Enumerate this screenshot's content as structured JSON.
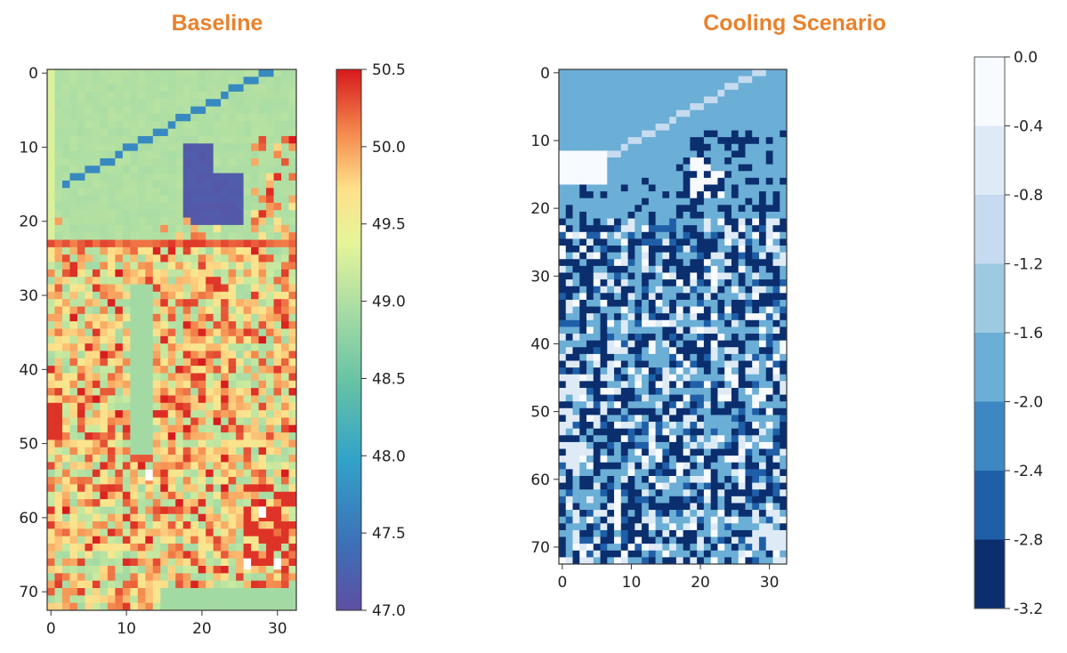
{
  "titles": {
    "left": "Baseline",
    "right": "Cooling Scenario"
  },
  "chart_data": [
    {
      "type": "heatmap",
      "title": "Baseline",
      "rows": 73,
      "cols": 33,
      "x_ticks": [
        0,
        10,
        20,
        30
      ],
      "y_ticks": [
        0,
        10,
        20,
        30,
        40,
        50,
        60,
        70
      ],
      "colorbar": {
        "colormap": "spectral",
        "vmin": 47.0,
        "vmax": 50.5,
        "ticks": [
          "47.0",
          "47.5",
          "48.0",
          "48.5",
          "49.0",
          "49.5",
          "50.0",
          "50.5"
        ]
      },
      "notes_values": {
        "background_green": 49.0,
        "canal_line": 47.7,
        "pond": 47.1,
        "hot_cells": 50.4
      }
    },
    {
      "type": "heatmap",
      "title": "Cooling Scenario",
      "rows": 73,
      "cols": 33,
      "x_ticks": [
        0,
        10,
        20,
        30
      ],
      "y_ticks": [
        0,
        10,
        20,
        30,
        40,
        50,
        60,
        70
      ],
      "colorbar": {
        "colormap": "blues_discrete",
        "vmin": -3.2,
        "vmax": 0.0,
        "levels": 8,
        "ticks": [
          "0.0",
          "-0.4",
          "-0.8",
          "-1.2",
          "-1.6",
          "-2.0",
          "-2.4",
          "-2.8",
          "-3.2"
        ],
        "colors": [
          "#f7fbff",
          "#deebf7",
          "#c6dbef",
          "#9ecae1",
          "#6baed6",
          "#3d87c2",
          "#1f5fa8",
          "#0b2e6e"
        ]
      }
    }
  ]
}
